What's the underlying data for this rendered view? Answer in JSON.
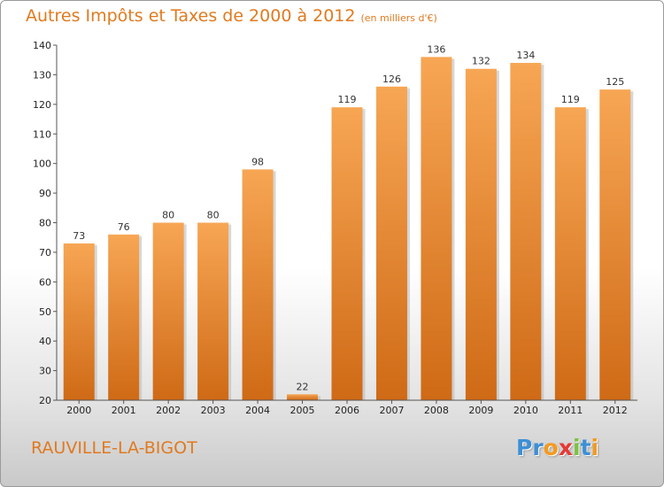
{
  "chart_data": {
    "type": "bar",
    "title": "Autres Impôts et Taxes de 2000 à 2012",
    "subtitle": "(en milliers d'€)",
    "categories": [
      "2000",
      "2001",
      "2002",
      "2003",
      "2004",
      "2005",
      "2006",
      "2007",
      "2008",
      "2009",
      "2010",
      "2011",
      "2012"
    ],
    "values": [
      73,
      76,
      80,
      80,
      98,
      22,
      119,
      126,
      136,
      132,
      134,
      119,
      125
    ],
    "ylim": [
      20,
      140
    ],
    "yticks": [
      20,
      30,
      40,
      50,
      60,
      70,
      80,
      90,
      100,
      110,
      120,
      130,
      140
    ],
    "grid": false,
    "bar_color_top": "#f7a654",
    "bar_color_bottom": "#cf6a16"
  },
  "commune": "RAUVILLE-LA-BIGOT",
  "logo": {
    "letters": [
      "P",
      "r",
      "o",
      "x",
      "i",
      "t",
      "i"
    ],
    "colors": [
      "#3d8fd6",
      "#3d8fd6",
      "#f39a1f",
      "#e53935",
      "#7cc242",
      "#3d8fd6",
      "#f39a1f"
    ]
  },
  "colors": {
    "accent": "#e07a1f"
  }
}
